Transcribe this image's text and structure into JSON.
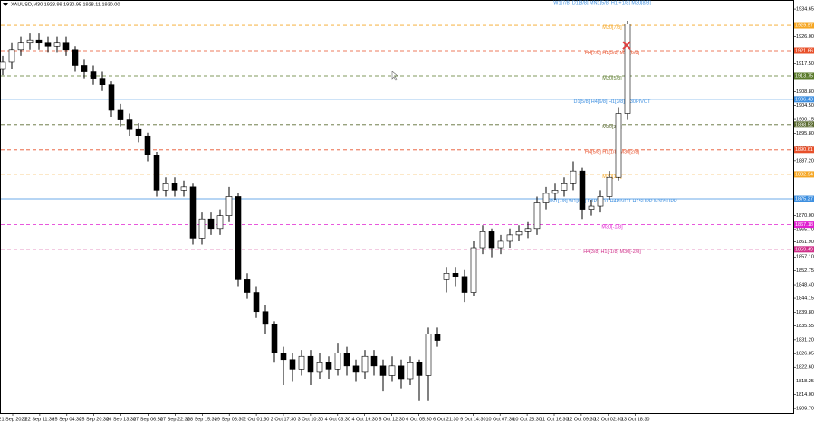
{
  "chart_data": {
    "type": "candlestick",
    "title": "XAUUSD,M30  1928.99 1930.95 1928.11 1930.00",
    "top_annotation": "W1[7/8] D1[8/8] MN1[5/8] H1[+1/8] M30[8/8]",
    "ylim": [
      1807.4,
      1937.5
    ],
    "yticks": [
      1934.65,
      {
        "value": 1926,
        "label": "1926.00"
      },
      {
        "value": 1917.5,
        "label": "1917.50"
      },
      {
        "value": 1908.8,
        "label": "1908.80"
      },
      {
        "value": 1904.5,
        "label": "1904.50"
      },
      1900.15,
      {
        "value": 1895.8,
        "label": "1895.80"
      },
      1891.15,
      {
        "value": 1887.2,
        "label": "1887.20"
      },
      {
        "value": 1870,
        "label": "1870.00"
      },
      {
        "value": 1865.7,
        "label": "1865.70"
      },
      {
        "value": 1861.9,
        "label": "1861.90"
      },
      {
        "value": 1857.1,
        "label": "1857.10"
      },
      1852.75,
      {
        "value": 1848.4,
        "label": "1848.40"
      },
      1844.15,
      {
        "value": 1839.8,
        "label": "1839.80"
      },
      1835.55,
      {
        "value": 1831.2,
        "label": "1831.20"
      },
      1826.85,
      {
        "value": 1822.6,
        "label": "1822.60"
      },
      1818.25,
      {
        "value": 1814,
        "label": "1814.00"
      },
      {
        "value": 1809.7,
        "label": "1809.70"
      }
    ],
    "categories": [
      "21 Sep 2023",
      "22 Sep 11:30",
      "25 Sep 04:30",
      "25 Sep 20:30",
      "26 Sep 13:30",
      "27 Sep 06:30",
      "27 Sep 22:30",
      "28 Sep 15:30",
      "29 Sep 08:30",
      "2 Oct 01:30",
      "2 Oct 17:30",
      "3 Oct 10:30",
      "4 Oct 03:30",
      "4 Oct 19:30",
      "5 Oct 12:30",
      "6 Oct 05:30",
      "6 Oct 21:30",
      "9 Oct 14:30",
      "10 Oct 07:30",
      "10 Oct 23:30",
      "11 Oct 16:30",
      "12 Oct 09:30",
      "13 Oct 02:30",
      "13 Oct 18:30"
    ],
    "open": [
      1916,
      1918,
      1922,
      1924,
      1925,
      1924,
      1923,
      1924,
      1922,
      1917,
      1915,
      1913,
      1911,
      1903,
      1900,
      1897,
      1895,
      1889,
      1878,
      1880,
      1878,
      1879,
      1863,
      1869,
      1866,
      1870,
      1876,
      1850,
      1846,
      1840,
      1836,
      1827,
      1825,
      1822,
      1826,
      1821,
      1824,
      1822,
      1827,
      1823,
      1821,
      1826,
      1823,
      1820,
      1823,
      1819,
      1824,
      1820,
      1833,
      1850,
      1852,
      1851,
      1846,
      1860,
      1865,
      1860,
      1862,
      1864,
      1865,
      1866,
      1874,
      1877,
      1878,
      1880,
      1884,
      1872,
      1873,
      1876,
      1882,
      1902
    ],
    "high": [
      1920,
      1924,
      1926,
      1927,
      1927,
      1926,
      1926,
      1926,
      1923,
      1919,
      1917,
      1915,
      1912,
      1905,
      1902,
      1899,
      1896,
      1890,
      1882,
      1882,
      1881,
      1880,
      1871,
      1871,
      1872,
      1879,
      1877,
      1852,
      1848,
      1842,
      1837,
      1829,
      1827,
      1828,
      1828,
      1827,
      1826,
      1830,
      1829,
      1825,
      1828,
      1828,
      1825,
      1826,
      1825,
      1826,
      1825,
      1835,
      1835,
      1854,
      1854,
      1853,
      1862,
      1867,
      1866,
      1864,
      1866,
      1867,
      1868,
      1876,
      1879,
      1880,
      1882,
      1887,
      1885,
      1875,
      1878,
      1884,
      1904,
      1931
    ],
    "low": [
      1914,
      1916,
      1920,
      1922,
      1922,
      1921,
      1921,
      1920,
      1915,
      1913,
      1911,
      1909,
      1901,
      1898,
      1895,
      1893,
      1887,
      1876,
      1876,
      1876,
      1876,
      1861,
      1861,
      1864,
      1864,
      1868,
      1848,
      1844,
      1838,
      1833,
      1824,
      1817,
      1818,
      1820,
      1817,
      1819,
      1819,
      1820,
      1820,
      1818,
      1819,
      1820,
      1815,
      1818,
      1816,
      1817,
      1812,
      1812,
      1829,
      1846,
      1848,
      1843,
      1845,
      1858,
      1857,
      1858,
      1860,
      1862,
      1863,
      1864,
      1872,
      1875,
      1876,
      1878,
      1869,
      1870,
      1871,
      1875,
      1881,
      1900
    ],
    "close": [
      1918,
      1922,
      1924,
      1925,
      1924,
      1923,
      1924,
      1922,
      1917,
      1915,
      1913,
      1911,
      1903,
      1900,
      1897,
      1895,
      1889,
      1878,
      1880,
      1878,
      1879,
      1863,
      1869,
      1866,
      1870,
      1876,
      1850,
      1846,
      1840,
      1836,
      1827,
      1825,
      1822,
      1826,
      1821,
      1824,
      1822,
      1827,
      1823,
      1821,
      1826,
      1823,
      1820,
      1823,
      1819,
      1824,
      1820,
      1833,
      1831,
      1852,
      1851,
      1846,
      1860,
      1865,
      1860,
      1862,
      1864,
      1865,
      1866,
      1874,
      1877,
      1878,
      1880,
      1884,
      1872,
      1873,
      1876,
      1882,
      1902,
      1930
    ],
    "levels": [
      {
        "label": "M30[7/8]",
        "price": 1929.57,
        "color": "#f5a623",
        "dash": true
      },
      {
        "label": "H4[7/8] H1[5/8] M30[6/8]",
        "price": 1921.66,
        "color": "#e8502a",
        "dash": true
      },
      {
        "label": "M30[5/8]",
        "price": 1913.75,
        "color": "#5a7a2a",
        "dash": true
      },
      {
        "label": "D1[5/8] H4[6/8] H1[3/8] M30PIVOT",
        "price": 1906.43,
        "color": "#3d8fe0",
        "dash": false
      },
      {
        "label": "M30[3/8]",
        "price": 1898.52,
        "color": "#5a6a30",
        "dash": true
      },
      {
        "label": "H4[5/8] H1[1/8] M30[2/8]",
        "price": 1890.61,
        "color": "#e8502a",
        "dash": true
      },
      {
        "label": "M30[1/8]",
        "price": 1882.94,
        "color": "#f5a623",
        "dash": true
      },
      {
        "label": "MN1[7/8] W1[6/8] D1PIVOT H4PIVOT H1SUPP M30SUPP",
        "price": 1875.27,
        "color": "#3d8fe0",
        "dash": false
      },
      {
        "label": "M30[-1/8]",
        "price": 1867.18,
        "color": "#e020d0",
        "dash": true
      },
      {
        "label": "H4[3/8] H1[-1/8] M30[-2/8]",
        "price": 1859.49,
        "color": "#d0308a",
        "dash": true
      }
    ],
    "marker": {
      "price": 1923.3,
      "color": "#e04040"
    },
    "bull_color": "#ffffff",
    "bear_color": "#000000"
  }
}
